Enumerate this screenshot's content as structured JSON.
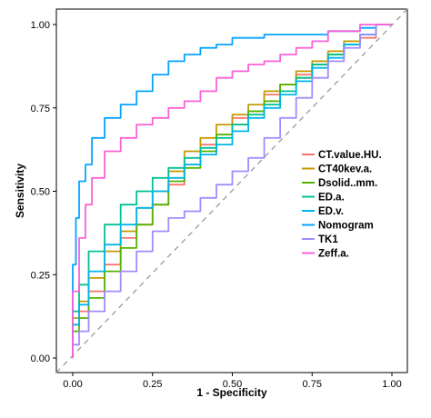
{
  "chart_data": {
    "type": "line",
    "title": "",
    "xlabel": "1 - Specificity",
    "ylabel": "Sensitivity",
    "xlim": [
      0,
      1
    ],
    "ylim": [
      0,
      1
    ],
    "x_ticks": [
      "0.00",
      "0.25",
      "0.50",
      "0.75",
      "1.00"
    ],
    "y_ticks": [
      "0.00",
      "0.25",
      "0.50",
      "0.75",
      "1.00"
    ],
    "grid": false,
    "reference_line": "diagonal dashed grey",
    "legend_position": "right-inside",
    "series": [
      {
        "name": "CT.value.HU.",
        "color": "#F8766D",
        "x": [
          0,
          0.02,
          0.05,
          0.1,
          0.15,
          0.2,
          0.25,
          0.3,
          0.35,
          0.4,
          0.45,
          0.5,
          0.55,
          0.6,
          0.65,
          0.7,
          0.75,
          0.8,
          0.85,
          0.9,
          0.95,
          1.0
        ],
        "y": [
          0,
          0.1,
          0.14,
          0.2,
          0.28,
          0.36,
          0.4,
          0.46,
          0.52,
          0.58,
          0.64,
          0.67,
          0.72,
          0.74,
          0.79,
          0.82,
          0.85,
          0.88,
          0.91,
          0.94,
          0.96,
          1.0
        ]
      },
      {
        "name": "CT40kev.a.",
        "color": "#C49A00",
        "x": [
          0,
          0.02,
          0.05,
          0.1,
          0.15,
          0.2,
          0.25,
          0.3,
          0.35,
          0.4,
          0.45,
          0.5,
          0.55,
          0.6,
          0.65,
          0.7,
          0.75,
          0.8,
          0.85,
          0.9,
          0.95,
          1.0
        ],
        "y": [
          0,
          0.12,
          0.17,
          0.24,
          0.32,
          0.38,
          0.45,
          0.5,
          0.56,
          0.62,
          0.66,
          0.7,
          0.73,
          0.76,
          0.8,
          0.82,
          0.86,
          0.89,
          0.92,
          0.95,
          0.97,
          1.0
        ]
      },
      {
        "name": "Dsolid..mm.",
        "color": "#53B400",
        "x": [
          0,
          0.02,
          0.05,
          0.1,
          0.15,
          0.2,
          0.25,
          0.3,
          0.35,
          0.4,
          0.45,
          0.5,
          0.55,
          0.6,
          0.65,
          0.7,
          0.75,
          0.8,
          0.85,
          0.9,
          0.95,
          1.0
        ],
        "y": [
          0,
          0.08,
          0.12,
          0.18,
          0.26,
          0.33,
          0.4,
          0.46,
          0.53,
          0.57,
          0.62,
          0.67,
          0.7,
          0.74,
          0.77,
          0.82,
          0.84,
          0.88,
          0.91,
          0.94,
          0.97,
          1.0
        ]
      },
      {
        "name": "ED.a.",
        "color": "#00C094",
        "x": [
          0,
          0.02,
          0.05,
          0.1,
          0.15,
          0.2,
          0.25,
          0.3,
          0.35,
          0.4,
          0.45,
          0.5,
          0.55,
          0.6,
          0.65,
          0.7,
          0.75,
          0.8,
          0.85,
          0.9,
          0.95,
          1.0
        ],
        "y": [
          0,
          0.14,
          0.22,
          0.32,
          0.4,
          0.46,
          0.5,
          0.54,
          0.57,
          0.6,
          0.63,
          0.66,
          0.7,
          0.73,
          0.76,
          0.8,
          0.84,
          0.88,
          0.91,
          0.94,
          0.97,
          1.0
        ]
      },
      {
        "name": "ED.v.",
        "color": "#00B6EB",
        "x": [
          0,
          0.02,
          0.05,
          0.1,
          0.15,
          0.2,
          0.25,
          0.3,
          0.35,
          0.4,
          0.45,
          0.5,
          0.55,
          0.6,
          0.65,
          0.7,
          0.75,
          0.8,
          0.85,
          0.9,
          0.95,
          1.0
        ],
        "y": [
          0,
          0.1,
          0.16,
          0.26,
          0.34,
          0.4,
          0.45,
          0.5,
          0.54,
          0.58,
          0.61,
          0.64,
          0.68,
          0.72,
          0.75,
          0.79,
          0.83,
          0.87,
          0.9,
          0.94,
          0.97,
          1.0
        ]
      },
      {
        "name": "Nomogram",
        "color": "#06A4FF",
        "x": [
          0,
          0.01,
          0.02,
          0.04,
          0.06,
          0.1,
          0.15,
          0.2,
          0.25,
          0.3,
          0.35,
          0.4,
          0.45,
          0.5,
          0.55,
          0.6,
          0.7,
          0.8,
          0.9,
          0.95,
          1.0
        ],
        "y": [
          0,
          0.28,
          0.42,
          0.53,
          0.58,
          0.66,
          0.72,
          0.76,
          0.8,
          0.85,
          0.89,
          0.91,
          0.93,
          0.94,
          0.96,
          0.96,
          0.97,
          0.97,
          0.98,
          0.99,
          1.0
        ]
      },
      {
        "name": "TK1",
        "color": "#A58AFF",
        "x": [
          0,
          0.02,
          0.05,
          0.1,
          0.15,
          0.2,
          0.25,
          0.3,
          0.35,
          0.4,
          0.45,
          0.5,
          0.55,
          0.6,
          0.65,
          0.7,
          0.75,
          0.8,
          0.85,
          0.9,
          0.95,
          1.0
        ],
        "y": [
          0,
          0.04,
          0.08,
          0.14,
          0.2,
          0.26,
          0.32,
          0.38,
          0.42,
          0.44,
          0.48,
          0.52,
          0.56,
          0.6,
          0.66,
          0.72,
          0.78,
          0.84,
          0.89,
          0.93,
          0.97,
          1.0
        ]
      },
      {
        "name": "Zeff.a.",
        "color": "#FB61D7",
        "x": [
          0,
          0.02,
          0.04,
          0.06,
          0.1,
          0.15,
          0.2,
          0.25,
          0.3,
          0.35,
          0.4,
          0.45,
          0.5,
          0.55,
          0.6,
          0.65,
          0.7,
          0.75,
          0.8,
          0.9,
          1.0
        ],
        "y": [
          0,
          0.2,
          0.36,
          0.46,
          0.54,
          0.62,
          0.66,
          0.7,
          0.72,
          0.75,
          0.77,
          0.8,
          0.84,
          0.86,
          0.88,
          0.89,
          0.91,
          0.93,
          0.95,
          0.98,
          1.0
        ]
      }
    ]
  }
}
